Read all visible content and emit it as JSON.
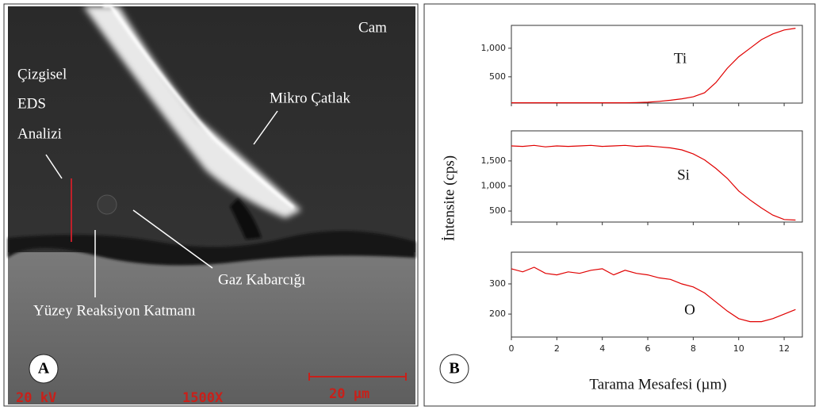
{
  "panel_a": {
    "label": "A",
    "texts": {
      "cam": "Cam",
      "cizgisel": "Çizgisel",
      "eds": "EDS",
      "analizi": "Analizi",
      "mikro": "Mikro Çatlak",
      "gaz": "Gaz Kabarcığı",
      "yuzey": "Yüzey Reaksiyon Katmanı",
      "kv": "20 kV",
      "mag": "1500X",
      "scale": "20 µm"
    }
  },
  "panel_b": {
    "label": "B",
    "y_label": "İntensite (cps)",
    "x_label": "Tarama Mesafesi (µm)"
  },
  "chart_data": [
    {
      "type": "line",
      "annotation": "Ti",
      "color": "#e00000",
      "x": [
        0,
        0.5,
        1,
        1.5,
        2,
        2.5,
        3,
        3.5,
        4,
        4.5,
        5,
        5.5,
        6,
        6.5,
        7,
        7.5,
        8,
        8.5,
        9,
        9.5,
        10,
        10.5,
        11,
        11.5,
        12,
        12.5
      ],
      "values": [
        45,
        45,
        45,
        45,
        45,
        45,
        45,
        45,
        45,
        45,
        46,
        48,
        55,
        70,
        90,
        115,
        150,
        220,
        400,
        650,
        850,
        1000,
        1150,
        1250,
        1320,
        1350
      ],
      "xlim": [
        0,
        12.8
      ],
      "xticks": [
        0,
        2,
        4,
        6,
        8,
        10,
        12
      ],
      "ylim": [
        40,
        1400
      ],
      "yticks": [
        500,
        {
          "value": 1000,
          "label": "1,000"
        }
      ]
    },
    {
      "type": "line",
      "annotation": "Si",
      "color": "#e00000",
      "x": [
        0,
        0.5,
        1,
        1.5,
        2,
        2.5,
        3,
        3.5,
        4,
        4.5,
        5,
        5.5,
        6,
        6.5,
        7,
        7.5,
        8,
        8.5,
        9,
        9.5,
        10,
        10.5,
        11,
        11.5,
        12,
        12.5
      ],
      "values": [
        1800,
        1790,
        1810,
        1780,
        1800,
        1790,
        1800,
        1810,
        1790,
        1800,
        1810,
        1790,
        1800,
        1780,
        1760,
        1720,
        1640,
        1520,
        1350,
        1150,
        900,
        720,
        560,
        420,
        330,
        320
      ],
      "xlim": [
        0,
        12.8
      ],
      "xticks": [
        0,
        2,
        4,
        6,
        8,
        10,
        12
      ],
      "ylim": [
        280,
        2100
      ],
      "yticks": [
        500,
        {
          "value": 1000,
          "label": "1,000"
        },
        {
          "value": 1500,
          "label": "1,500"
        }
      ]
    },
    {
      "type": "line",
      "annotation": "O",
      "color": "#e00000",
      "x": [
        0,
        0.5,
        1,
        1.5,
        2,
        2.5,
        3,
        3.5,
        4,
        4.5,
        5,
        5.5,
        6,
        6.5,
        7,
        7.5,
        8,
        8.5,
        9,
        9.5,
        10,
        10.5,
        11,
        11.5,
        12,
        12.5
      ],
      "values": [
        350,
        340,
        355,
        335,
        330,
        340,
        335,
        345,
        350,
        330,
        345,
        335,
        330,
        320,
        315,
        300,
        290,
        270,
        240,
        210,
        185,
        175,
        175,
        185,
        200,
        215
      ],
      "xlim": [
        0,
        12.8
      ],
      "xticks": [
        0,
        2,
        4,
        6,
        8,
        10,
        12
      ],
      "ylim": [
        124,
        405
      ],
      "yticks": [
        200,
        300
      ]
    }
  ]
}
